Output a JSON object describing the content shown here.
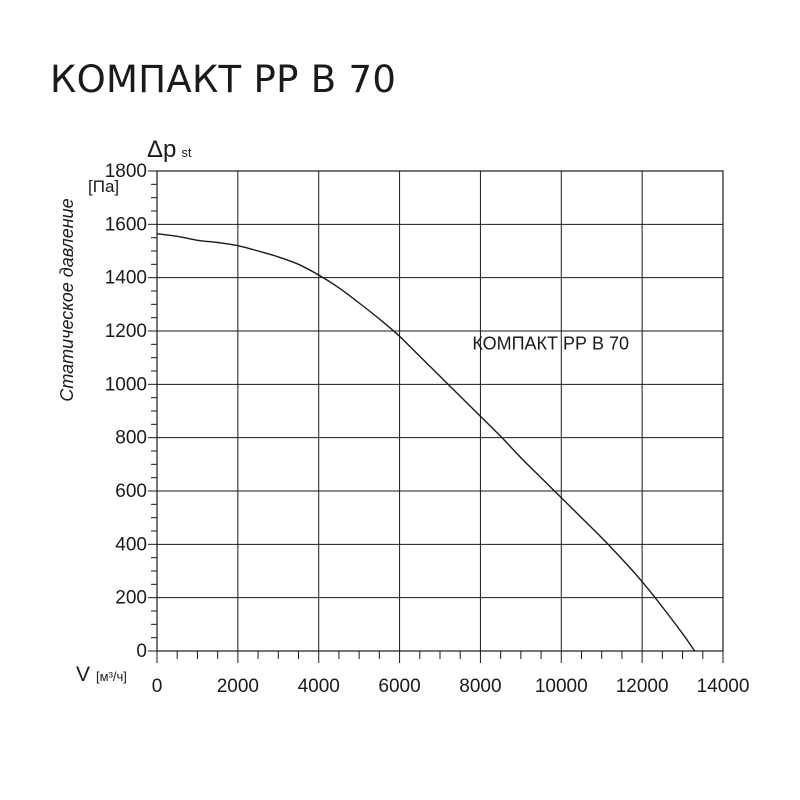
{
  "title": "КОМПАКТ РР В 70",
  "chart_data": {
    "type": "line",
    "y_axis": {
      "symbol": "Δp",
      "subscript": "st",
      "unit": "[Па]",
      "label": "Статическое давление",
      "range": [
        0,
        1800
      ],
      "major_step": 200,
      "minor_step": 50,
      "ticks": [
        0,
        200,
        400,
        600,
        800,
        1000,
        1200,
        1400,
        1600,
        1800
      ]
    },
    "x_axis": {
      "symbol": "V",
      "unit": "[м³/ч]",
      "range": [
        0,
        14000
      ],
      "major_step": 2000,
      "minor_step": 500,
      "ticks": [
        0,
        2000,
        4000,
        6000,
        8000,
        10000,
        12000,
        14000
      ]
    },
    "grid": true,
    "series": [
      {
        "name": "КОМПАКТ РР В 70",
        "points": [
          [
            0,
            1565
          ],
          [
            500,
            1555
          ],
          [
            1000,
            1540
          ],
          [
            1500,
            1532
          ],
          [
            2000,
            1520
          ],
          [
            2500,
            1500
          ],
          [
            3000,
            1478
          ],
          [
            3500,
            1450
          ],
          [
            4000,
            1410
          ],
          [
            4500,
            1362
          ],
          [
            5000,
            1305
          ],
          [
            5500,
            1245
          ],
          [
            6000,
            1180
          ],
          [
            6500,
            1105
          ],
          [
            7000,
            1030
          ],
          [
            7500,
            955
          ],
          [
            8000,
            880
          ],
          [
            8500,
            805
          ],
          [
            9000,
            725
          ],
          [
            9500,
            650
          ],
          [
            10000,
            575
          ],
          [
            10500,
            500
          ],
          [
            11000,
            425
          ],
          [
            11500,
            345
          ],
          [
            12000,
            260
          ],
          [
            12500,
            165
          ],
          [
            13000,
            65
          ],
          [
            13300,
            0
          ]
        ],
        "color": "#1a1a1a"
      }
    ]
  }
}
